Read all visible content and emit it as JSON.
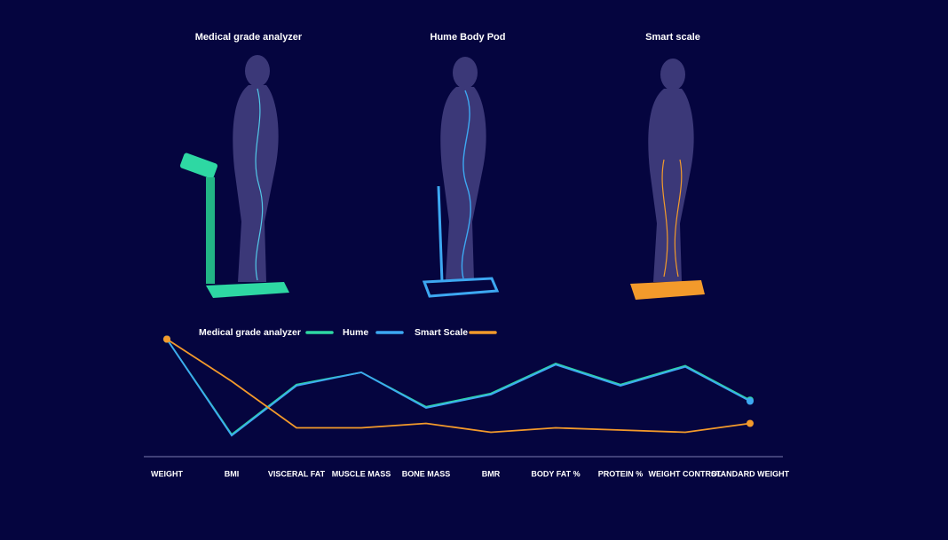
{
  "panels": [
    {
      "title": "Medical grade analyzer"
    },
    {
      "title": "Hume Body Pod"
    },
    {
      "title": "Smart scale"
    }
  ],
  "chart_data": {
    "type": "line",
    "categories": [
      "WEIGHT",
      "BMI",
      "VISCERAL FAT",
      "MUSCLE MASS",
      "BONE MASS",
      "BMR",
      "BODY FAT %",
      "PROTEIN %",
      "WEIGHT CONTROL",
      "STANDARD WEIGHT"
    ],
    "ylim": [
      0,
      100
    ],
    "series": [
      {
        "name": "Medical grade analyzer",
        "color": "#2ed8a3",
        "values": [
          94,
          8,
          53,
          64,
          33,
          45,
          72,
          53,
          70,
          39
        ]
      },
      {
        "name": "Hume",
        "color": "#3da8f2",
        "values": [
          94,
          7,
          52,
          64,
          32,
          44,
          71,
          52,
          69,
          38
        ]
      },
      {
        "name": "Smart Scale",
        "color": "#f39a2b",
        "values": [
          94,
          56,
          14,
          14,
          18,
          10,
          14,
          12,
          10,
          18
        ]
      }
    ]
  }
}
